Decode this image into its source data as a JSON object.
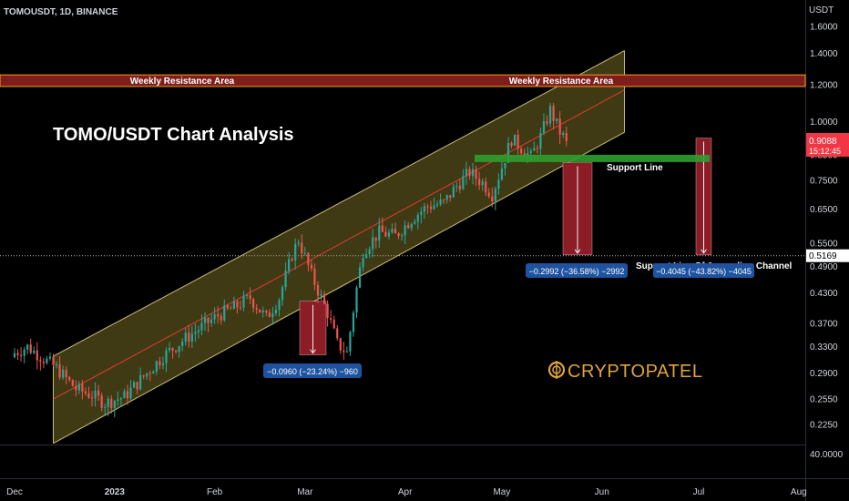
{
  "header": {
    "symbol_line": "TOMOUSDT, 1D, BINANCE",
    "currency": "USDT"
  },
  "annotations": {
    "main_title": "TOMO/USDT Chart Analysis",
    "resistance_label_left": "Weekly Resistance Area",
    "resistance_label_right": "Weekly Resistance Area",
    "support_line_label": "Support Line",
    "channel_label": "Support Line Of Ascending Channel",
    "measure_1": "−0.0960 (−23.24%) −960",
    "measure_2": "−0.2992 (−36.58%) −2992",
    "measure_3": "−0.4045 (−43.82%) −4045",
    "logo_text": "CRYPTOPATEL"
  },
  "price_tags": {
    "current": "0.9088",
    "countdown": "15:12:45",
    "level": "0.5169"
  },
  "colors": {
    "background": "#000000",
    "up": "#26a69a",
    "down": "#ef5350",
    "up_bright": "#4caf50",
    "channel_fill": "#4a4416",
    "channel_border": "#c8bd7a",
    "resistance_fill": "#7f1d1d",
    "resistance_border": "#f0a020",
    "support_green": "#2e9e2e",
    "measure_fill": "#8c1c26",
    "label_blue": "#1e53a0",
    "price_tag_red": "#f23645",
    "logo": "#e0a43a"
  },
  "chart_data": {
    "type": "candlestick",
    "symbol": "TOMOUSDT",
    "interval": "1D",
    "exchange": "BINANCE",
    "y_axis": {
      "scale": "log",
      "ticks": [
        "1.6000",
        "1.4000",
        "1.2000",
        "1.0000",
        "0.8500",
        "0.7500",
        "0.6500",
        "0.5500",
        "0.4900",
        "0.4300",
        "0.3700",
        "0.3300",
        "0.2900",
        "0.2550",
        "0.2250"
      ],
      "range": [
        0.205,
        1.75
      ]
    },
    "lower_pane_tick": "40.0000",
    "x_axis": {
      "ticks": [
        "Dec",
        "2023",
        "Feb",
        "Mar",
        "Apr",
        "May",
        "Jun",
        "Jul",
        "Aug"
      ]
    },
    "current_price": 0.9088,
    "horizontal_level": 0.5169,
    "resistance_zone": [
      1.19,
      1.26
    ],
    "support_line_zone": [
      0.82,
      0.85
    ],
    "channel": {
      "upper": [
        {
          "date": "2022-12-13",
          "price": 0.315
        },
        {
          "date": "2023-06-08",
          "price": 1.42
        }
      ],
      "mid": [
        {
          "date": "2022-12-13",
          "price": 0.255
        },
        {
          "date": "2023-06-08",
          "price": 1.17
        }
      ],
      "lower": [
        {
          "date": "2022-12-13",
          "price": 0.205
        },
        {
          "date": "2023-06-08",
          "price": 0.95
        }
      ]
    },
    "measurements": [
      {
        "from": 0.413,
        "to": 0.317,
        "change": -0.096,
        "percent": -23.24,
        "ticks": -960
      },
      {
        "from": 0.818,
        "to": 0.519,
        "change": -0.2992,
        "percent": -36.58,
        "ticks": -2992
      },
      {
        "from": 0.923,
        "to": 0.519,
        "change": -0.4045,
        "percent": -43.82,
        "ticks": -4045
      }
    ],
    "candles_path": [
      [
        "2022-12-01",
        0.32
      ],
      [
        "2022-12-05",
        0.33
      ],
      [
        "2022-12-09",
        0.315
      ],
      [
        "2022-12-14",
        0.297
      ],
      [
        "2022-12-20",
        0.268
      ],
      [
        "2022-12-25",
        0.26
      ],
      [
        "2022-12-29",
        0.25
      ],
      [
        "2023-01-04",
        0.258
      ],
      [
        "2023-01-10",
        0.285
      ],
      [
        "2023-01-16",
        0.315
      ],
      [
        "2023-01-22",
        0.34
      ],
      [
        "2023-01-27",
        0.36
      ],
      [
        "2023-02-02",
        0.385
      ],
      [
        "2023-02-07",
        0.4
      ],
      [
        "2023-02-12",
        0.42
      ],
      [
        "2023-02-17",
        0.38
      ],
      [
        "2023-02-21",
        0.42
      ],
      [
        "2023-02-25",
        0.52
      ],
      [
        "2023-02-27",
        0.56
      ],
      [
        "2023-03-03",
        0.47
      ],
      [
        "2023-03-08",
        0.39
      ],
      [
        "2023-03-11",
        0.335
      ],
      [
        "2023-03-14",
        0.32
      ],
      [
        "2023-03-17",
        0.44
      ],
      [
        "2023-03-19",
        0.53
      ],
      [
        "2023-03-24",
        0.58
      ],
      [
        "2023-03-29",
        0.57
      ],
      [
        "2023-04-03",
        0.62
      ],
      [
        "2023-04-08",
        0.66
      ],
      [
        "2023-04-13",
        0.67
      ],
      [
        "2023-04-17",
        0.73
      ],
      [
        "2023-04-21",
        0.78
      ],
      [
        "2023-04-25",
        0.74
      ],
      [
        "2023-04-28",
        0.7
      ],
      [
        "2023-05-01",
        0.8
      ],
      [
        "2023-05-04",
        0.92
      ],
      [
        "2023-05-07",
        0.88
      ],
      [
        "2023-05-10",
        0.84
      ],
      [
        "2023-05-13",
        0.93
      ],
      [
        "2023-05-16",
        1.06
      ],
      [
        "2023-05-19",
        0.95
      ],
      [
        "2023-05-21",
        0.909
      ]
    ]
  }
}
